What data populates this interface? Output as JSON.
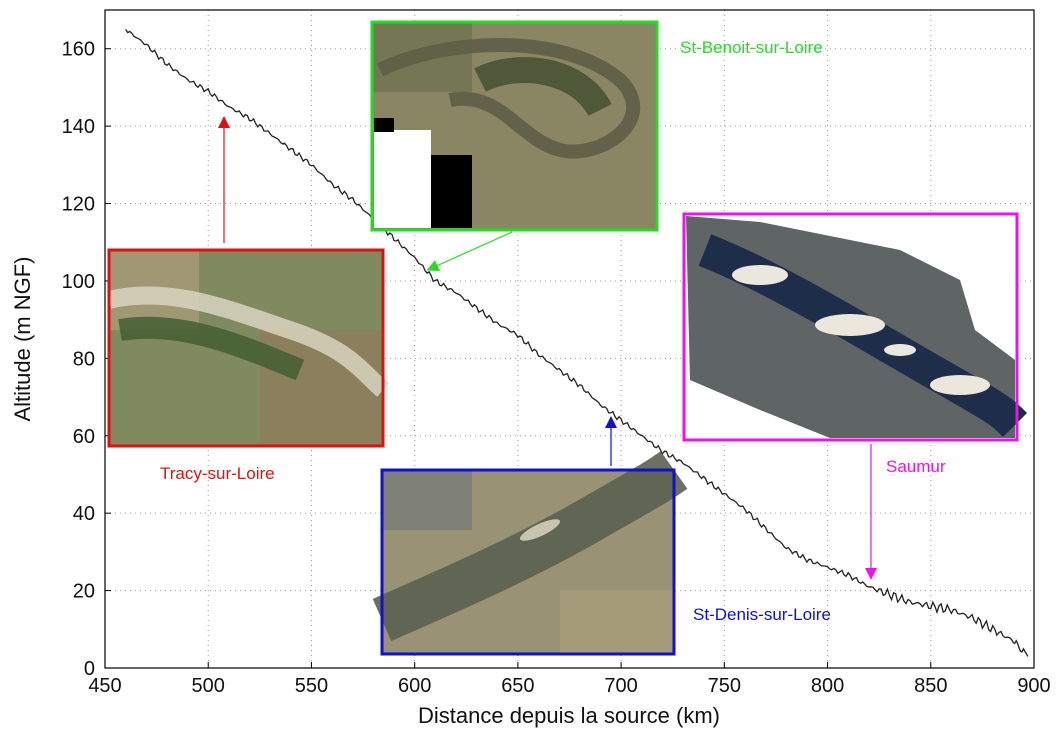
{
  "chart_data": {
    "type": "line",
    "title": "",
    "xlabel": "Distance depuis la source (km)",
    "ylabel": "Altitude (m NGF)",
    "xlim": [
      450,
      900
    ],
    "ylim": [
      0,
      170
    ],
    "x_ticks": [
      450,
      500,
      550,
      600,
      650,
      700,
      750,
      800,
      850,
      900
    ],
    "y_ticks": [
      0,
      20,
      40,
      60,
      80,
      100,
      120,
      140,
      160
    ],
    "grid": true,
    "series": [
      {
        "name": "",
        "color": "#222222",
        "x": [
          460,
          470,
          480,
          490,
          500,
          510,
          520,
          530,
          540,
          550,
          560,
          570,
          580,
          590,
          600,
          610,
          620,
          630,
          640,
          650,
          660,
          670,
          680,
          690,
          700,
          710,
          720,
          730,
          740,
          750,
          760,
          770,
          780,
          790,
          800,
          810,
          820,
          830,
          840,
          850,
          860,
          870,
          880,
          890,
          897
        ],
        "y": [
          165,
          161,
          156,
          152,
          149,
          145,
          142,
          138,
          134,
          130,
          125,
          121,
          116,
          111,
          106,
          100,
          97,
          93,
          89,
          86,
          81,
          77,
          73,
          68,
          64,
          60,
          56,
          53,
          49,
          45,
          41,
          36,
          31,
          28,
          26,
          24,
          21,
          19,
          17,
          16,
          15,
          13,
          10,
          7,
          3
        ]
      }
    ],
    "annotations": [
      {
        "label": "Tracy-sur-Loire",
        "color": "#e01010",
        "points_to": {
          "x": 510,
          "y": 143
        }
      },
      {
        "label": "St-Benoit-sur-Loire",
        "color": "#22dd22",
        "points_to": {
          "x": 605,
          "y": 102
        }
      },
      {
        "label": "St-Denis-sur-Loire",
        "color": "#1010d0",
        "points_to": {
          "x": 697,
          "y": 64
        }
      },
      {
        "label": "Saumur",
        "color": "#ee10ee",
        "points_to": {
          "x": 822,
          "y": 23
        }
      }
    ]
  },
  "photos": {
    "tracy": {
      "icon": "aerial-photo-tracy",
      "border": "#e01010"
    },
    "benoit": {
      "icon": "aerial-photo-st-benoit",
      "border": "#22dd22"
    },
    "saumur": {
      "icon": "aerial-photo-saumur",
      "border": "#ee10ee"
    },
    "denis": {
      "icon": "aerial-photo-st-denis",
      "border": "#1010d0"
    }
  }
}
